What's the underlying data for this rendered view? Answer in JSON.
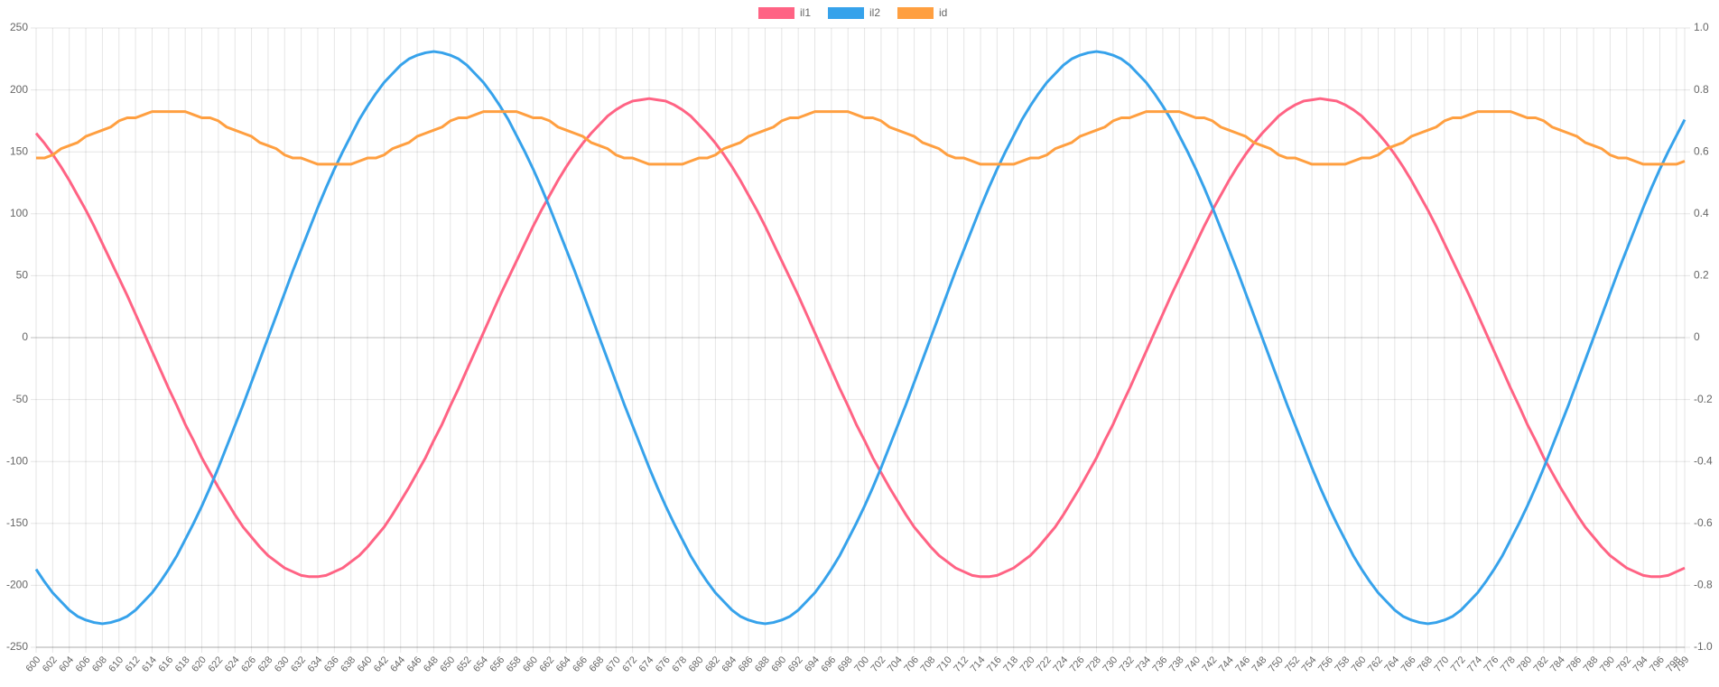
{
  "chart_data": {
    "type": "line",
    "x": [
      600,
      601,
      602,
      603,
      604,
      605,
      606,
      607,
      608,
      609,
      610,
      611,
      612,
      613,
      614,
      615,
      616,
      617,
      618,
      619,
      620,
      621,
      622,
      623,
      624,
      625,
      626,
      627,
      628,
      629,
      630,
      631,
      632,
      633,
      634,
      635,
      636,
      637,
      638,
      639,
      640,
      641,
      642,
      643,
      644,
      645,
      646,
      647,
      648,
      649,
      650,
      651,
      652,
      653,
      654,
      655,
      656,
      657,
      658,
      659,
      660,
      661,
      662,
      663,
      664,
      665,
      666,
      667,
      668,
      669,
      670,
      671,
      672,
      673,
      674,
      675,
      676,
      677,
      678,
      679,
      680,
      681,
      682,
      683,
      684,
      685,
      686,
      687,
      688,
      689,
      690,
      691,
      692,
      693,
      694,
      695,
      696,
      697,
      698,
      699,
      700,
      701,
      702,
      703,
      704,
      705,
      706,
      707,
      708,
      709,
      710,
      711,
      712,
      713,
      714,
      715,
      716,
      717,
      718,
      719,
      720,
      721,
      722,
      723,
      724,
      725,
      726,
      727,
      728,
      729,
      730,
      731,
      732,
      733,
      734,
      735,
      736,
      737,
      738,
      739,
      740,
      741,
      742,
      743,
      744,
      745,
      746,
      747,
      748,
      749,
      750,
      751,
      752,
      753,
      754,
      755,
      756,
      757,
      758,
      759,
      760,
      761,
      762,
      763,
      764,
      765,
      766,
      767,
      768,
      769,
      770,
      771,
      772,
      773,
      774,
      775,
      776,
      777,
      778,
      779,
      780,
      781,
      782,
      783,
      784,
      785,
      786,
      787,
      788,
      789,
      790,
      791,
      792,
      793,
      794,
      795,
      796,
      797,
      798,
      799
    ],
    "xlim": [
      600,
      799
    ],
    "xticks": [
      600,
      602,
      604,
      606,
      608,
      610,
      612,
      614,
      616,
      618,
      620,
      622,
      624,
      626,
      628,
      630,
      632,
      634,
      636,
      638,
      640,
      642,
      644,
      646,
      648,
      650,
      652,
      654,
      656,
      658,
      660,
      662,
      664,
      666,
      668,
      670,
      672,
      674,
      676,
      678,
      680,
      682,
      684,
      686,
      688,
      690,
      692,
      694,
      696,
      698,
      700,
      702,
      704,
      706,
      708,
      710,
      712,
      714,
      716,
      718,
      720,
      722,
      724,
      726,
      728,
      730,
      732,
      734,
      736,
      738,
      740,
      742,
      744,
      746,
      748,
      750,
      752,
      754,
      756,
      758,
      760,
      762,
      764,
      766,
      768,
      770,
      772,
      774,
      776,
      778,
      780,
      782,
      784,
      786,
      788,
      790,
      792,
      794,
      796,
      798,
      799
    ],
    "ylim": [
      -250,
      250
    ],
    "yticks": [
      -250,
      -200,
      -150,
      -100,
      -50,
      0,
      50,
      100,
      150,
      200,
      250
    ],
    "y2lim": [
      -1,
      1
    ],
    "y2ticks": [
      {
        "value": -1,
        "label": "-1.0"
      },
      -0.8,
      -0.6,
      -0.4,
      -0.2,
      0,
      0.2,
      0.4,
      0.6,
      0.8,
      {
        "value": 1,
        "label": "1.0"
      }
    ],
    "grid": true,
    "legend": "top",
    "series": [
      {
        "name": "il1",
        "color": "#ff6384",
        "values": [
          165,
          157,
          148,
          138,
          127,
          115,
          103,
          90,
          76,
          62,
          48,
          34,
          19,
          4,
          -11,
          -26,
          -41,
          -55,
          -70,
          -83,
          -97,
          -109,
          -121,
          -132,
          -143,
          -153,
          -161,
          -169,
          -176,
          -181,
          -186,
          -189,
          -192,
          -193,
          -193,
          -192,
          -189,
          -186,
          -181,
          -176,
          -169,
          -161,
          -153,
          -143,
          -132,
          -121,
          -109,
          -97,
          -83,
          -70,
          -55,
          -41,
          -26,
          -11,
          4,
          19,
          34,
          48,
          62,
          76,
          90,
          103,
          115,
          127,
          138,
          148,
          157,
          165,
          172,
          179,
          184,
          188,
          191,
          192,
          193,
          192,
          191,
          188,
          184,
          179,
          172,
          165,
          157,
          148,
          138,
          127,
          115,
          103,
          90,
          76,
          62,
          48,
          34,
          19,
          4,
          -11,
          -26,
          -41,
          -55,
          -70,
          -83,
          -97,
          -109,
          -121,
          -132,
          -143,
          -153,
          -161,
          -169,
          -176,
          -181,
          -186,
          -189,
          -192,
          -193,
          -193,
          -192,
          -189,
          -186,
          -181,
          -176,
          -169,
          -161,
          -153,
          -143,
          -132,
          -121,
          -109,
          -97,
          -83,
          -70,
          -55,
          -41,
          -26,
          -11,
          4,
          19,
          34,
          48,
          62,
          76,
          90,
          103,
          115,
          127,
          138,
          148,
          157,
          165,
          172,
          179,
          184,
          188,
          191,
          192,
          193,
          192,
          191,
          188,
          184,
          179,
          172,
          165,
          157,
          148,
          138,
          127,
          115,
          103,
          90,
          76,
          62,
          48,
          34,
          19,
          4,
          -11,
          -26,
          -41,
          -55,
          -70,
          -83,
          -97,
          -109,
          -121,
          -132,
          -143,
          -153,
          -161,
          -169,
          -176,
          -181,
          -186,
          -189,
          -192,
          -193,
          -193,
          -192,
          -189,
          -186
        ]
      },
      {
        "name": "il2",
        "color": "#36a2eb",
        "values": [
          -187,
          -197,
          -206,
          -213,
          -220,
          -225,
          -228,
          -230,
          -231,
          -230,
          -228,
          -225,
          -220,
          -213,
          -206,
          -197,
          -187,
          -176,
          -163,
          -150,
          -136,
          -121,
          -105,
          -88,
          -71,
          -54,
          -36,
          -18,
          0,
          18,
          36,
          54,
          71,
          88,
          105,
          121,
          136,
          150,
          163,
          176,
          187,
          197,
          206,
          213,
          220,
          225,
          228,
          230,
          231,
          230,
          228,
          225,
          220,
          213,
          206,
          197,
          187,
          176,
          163,
          150,
          136,
          121,
          105,
          88,
          71,
          54,
          36,
          18,
          0,
          -18,
          -36,
          -54,
          -71,
          -88,
          -105,
          -121,
          -136,
          -150,
          -163,
          -176,
          -187,
          -197,
          -206,
          -213,
          -220,
          -225,
          -228,
          -230,
          -231,
          -230,
          -228,
          -225,
          -220,
          -213,
          -206,
          -197,
          -187,
          -176,
          -163,
          -150,
          -136,
          -121,
          -105,
          -88,
          -71,
          -54,
          -36,
          -18,
          0,
          18,
          36,
          54,
          71,
          88,
          105,
          121,
          136,
          150,
          163,
          176,
          187,
          197,
          206,
          213,
          220,
          225,
          228,
          230,
          231,
          230,
          228,
          225,
          220,
          213,
          206,
          197,
          187,
          176,
          163,
          150,
          136,
          121,
          105,
          88,
          71,
          54,
          36,
          18,
          0,
          -18,
          -36,
          -54,
          -71,
          -88,
          -105,
          -121,
          -136,
          -150,
          -163,
          -176,
          -187,
          -197,
          -206,
          -213,
          -220,
          -225,
          -228,
          -230,
          -231,
          -230,
          -228,
          -225,
          -220,
          -213,
          -206,
          -197,
          -187,
          -176,
          -163,
          -150,
          -136,
          -121,
          -105,
          -88,
          -71,
          -54,
          -36,
          -18,
          0,
          18,
          36,
          54,
          71,
          88,
          105,
          121,
          136,
          150,
          163,
          176
        ]
      },
      {
        "name": "id",
        "color": "#ff9f40",
        "axis": "y2",
        "values": [
          0.58,
          0.58,
          0.59,
          0.61,
          0.62,
          0.63,
          0.65,
          0.66,
          0.67,
          0.68,
          0.7,
          0.71,
          0.71,
          0.72,
          0.73,
          0.73,
          0.73,
          0.73,
          0.73,
          0.72,
          0.71,
          0.71,
          0.7,
          0.68,
          0.67,
          0.66,
          0.65,
          0.63,
          0.62,
          0.61,
          0.59,
          0.58,
          0.58,
          0.57,
          0.56,
          0.56,
          0.56,
          0.56,
          0.56,
          0.57,
          0.58,
          0.58,
          0.59,
          0.61,
          0.62,
          0.63,
          0.65,
          0.66,
          0.67,
          0.68,
          0.7,
          0.71,
          0.71,
          0.72,
          0.73,
          0.73,
          0.73,
          0.73,
          0.73,
          0.72,
          0.71,
          0.71,
          0.7,
          0.68,
          0.67,
          0.66,
          0.65,
          0.63,
          0.62,
          0.61,
          0.59,
          0.58,
          0.58,
          0.57,
          0.56,
          0.56,
          0.56,
          0.56,
          0.56,
          0.57,
          0.58,
          0.58,
          0.59,
          0.61,
          0.62,
          0.63,
          0.65,
          0.66,
          0.67,
          0.68,
          0.7,
          0.71,
          0.71,
          0.72,
          0.73,
          0.73,
          0.73,
          0.73,
          0.73,
          0.72,
          0.71,
          0.71,
          0.7,
          0.68,
          0.67,
          0.66,
          0.65,
          0.63,
          0.62,
          0.61,
          0.59,
          0.58,
          0.58,
          0.57,
          0.56,
          0.56,
          0.56,
          0.56,
          0.56,
          0.57,
          0.58,
          0.58,
          0.59,
          0.61,
          0.62,
          0.63,
          0.65,
          0.66,
          0.67,
          0.68,
          0.7,
          0.71,
          0.71,
          0.72,
          0.73,
          0.73,
          0.73,
          0.73,
          0.73,
          0.72,
          0.71,
          0.71,
          0.7,
          0.68,
          0.67,
          0.66,
          0.65,
          0.63,
          0.62,
          0.61,
          0.59,
          0.58,
          0.58,
          0.57,
          0.56,
          0.56,
          0.56,
          0.56,
          0.56,
          0.57,
          0.58,
          0.58,
          0.59,
          0.61,
          0.62,
          0.63,
          0.65,
          0.66,
          0.67,
          0.68,
          0.7,
          0.71,
          0.71,
          0.72,
          0.73,
          0.73,
          0.73,
          0.73,
          0.73,
          0.72,
          0.71,
          0.71,
          0.7,
          0.68,
          0.67,
          0.66,
          0.65,
          0.63,
          0.62,
          0.61,
          0.59,
          0.58,
          0.58,
          0.57,
          0.56,
          0.56,
          0.56,
          0.56,
          0.56,
          0.57
        ]
      }
    ]
  }
}
